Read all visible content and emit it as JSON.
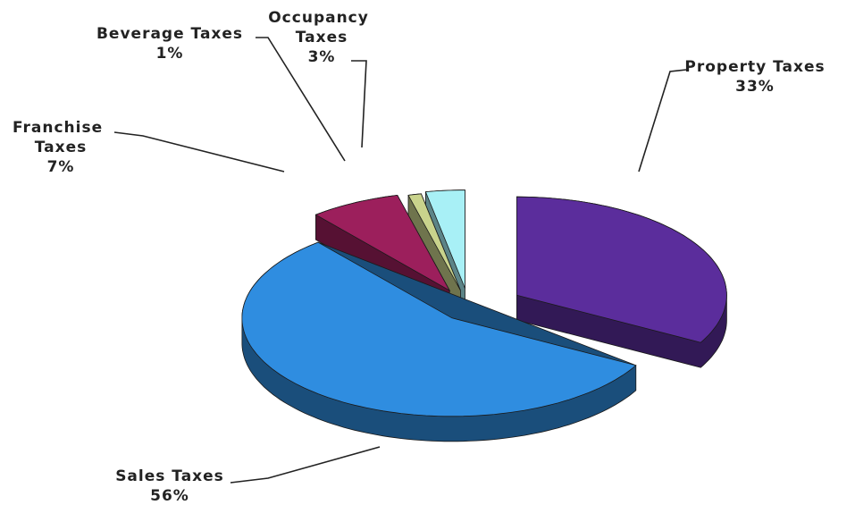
{
  "chart_data": {
    "type": "pie",
    "categories": [
      "Property Taxes",
      "Sales Taxes",
      "Franchise Taxes",
      "Beverage Taxes",
      "Occupancy Taxes"
    ],
    "values": [
      33,
      56,
      7,
      1,
      3
    ],
    "value_labels": [
      "33%",
      "56%",
      "7%",
      "1%",
      "3%"
    ],
    "colors": [
      "#5b2d9c",
      "#2f8de0",
      "#9c1f5c",
      "#c9d38c",
      "#a8f0f6"
    ]
  }
}
